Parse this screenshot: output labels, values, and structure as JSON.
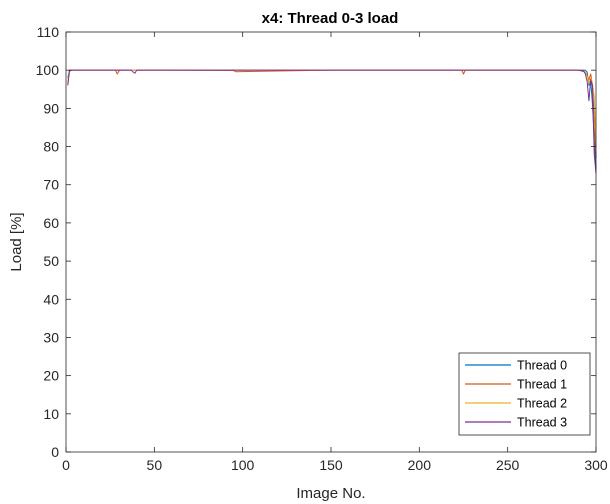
{
  "chart_data": {
    "type": "line",
    "title": "x4: Thread 0-3 load",
    "xlabel": "Image No.",
    "ylabel": "Load [%]",
    "xlim": [
      0,
      300
    ],
    "ylim": [
      0,
      110
    ],
    "xticks": [
      0,
      50,
      100,
      150,
      200,
      250,
      300
    ],
    "yticks": [
      0,
      10,
      20,
      30,
      40,
      50,
      60,
      70,
      80,
      90,
      100,
      110
    ],
    "grid": false,
    "legend_position": "bottom-right",
    "series": [
      {
        "name": "Thread 0",
        "color": "#0072BD",
        "x": [
          1,
          2,
          4,
          10,
          30,
          40,
          60,
          100,
          150,
          200,
          225,
          250,
          290,
          294,
          295,
          296,
          297,
          298,
          299,
          300
        ],
        "y": [
          98.0,
          100,
          100,
          100,
          100,
          100,
          100,
          100,
          100,
          100,
          100,
          100,
          100,
          100,
          99.5,
          96.0,
          97.5,
          91.0,
          82.0,
          74.0
        ]
      },
      {
        "name": "Thread 1",
        "color": "#D95319",
        "x": [
          1,
          2,
          4,
          10,
          28,
          29,
          30,
          31,
          40,
          55,
          60,
          95,
          96,
          150,
          200,
          224,
          225,
          226,
          250,
          290,
          294,
          295,
          296,
          297,
          298,
          299,
          300
        ],
        "y": [
          96.5,
          99.8,
          100,
          100,
          100,
          99.0,
          99.8,
          100,
          100,
          100,
          100,
          99.9,
          99.6,
          100,
          100,
          100,
          99.0,
          100,
          100,
          100,
          99.5,
          98.5,
          97.5,
          99.0,
          96.0,
          88.0,
          77.0
        ]
      },
      {
        "name": "Thread 2",
        "color": "#EDB120",
        "x": [
          1,
          2,
          4,
          10,
          30,
          40,
          60,
          100,
          150,
          200,
          250,
          290,
          293,
          294,
          295,
          296,
          297,
          298,
          299,
          300
        ],
        "y": [
          97.0,
          100,
          100,
          100,
          100,
          100,
          100,
          100,
          100,
          100,
          100,
          100,
          99.8,
          99.5,
          98.5,
          96.5,
          98.0,
          96.5,
          93.0,
          80.0
        ]
      },
      {
        "name": "Thread 3",
        "color": "#7E2F8E",
        "x": [
          1,
          2,
          4,
          10,
          37,
          38,
          39,
          40,
          60,
          100,
          150,
          200,
          250,
          290,
          293,
          294,
          295,
          296,
          297,
          298,
          299,
          300
        ],
        "y": [
          96.0,
          100,
          100,
          100,
          100,
          99.5,
          99.2,
          100,
          100,
          100,
          100,
          100,
          100,
          100,
          99.8,
          99.0,
          97.0,
          92.0,
          97.5,
          96.0,
          78.0,
          73.0
        ]
      }
    ]
  }
}
